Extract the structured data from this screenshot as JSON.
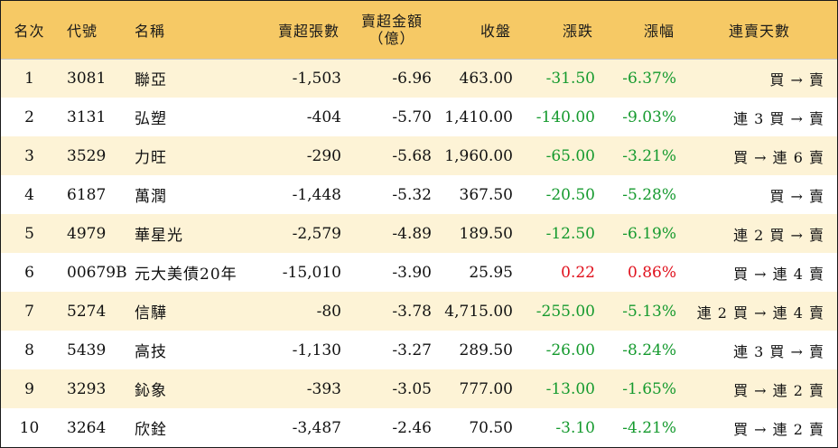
{
  "headers": {
    "rank": "名次",
    "code": "代號",
    "name": "名稱",
    "sell_lots": "賣超張數",
    "sell_amount_line1": "賣超金額",
    "sell_amount_line2": "（億）",
    "close": "收盤",
    "change": "漲跌",
    "change_pct": "漲幅",
    "streak": "連賣天數"
  },
  "colors": {
    "header_bg": "#f6c965",
    "odd_row_bg": "#fdf3d6",
    "down": "#159a2e",
    "up": "#e0101c"
  },
  "rows": [
    {
      "rank": "1",
      "code": "3081",
      "name": "聯亞",
      "sell_lots": "-1,503",
      "sell_amount": "-6.96",
      "close": "463.00",
      "change": "-31.50",
      "change_pct": "-6.37%",
      "streak": "買 → 賣",
      "dir": "down"
    },
    {
      "rank": "2",
      "code": "3131",
      "name": "弘塑",
      "sell_lots": "-404",
      "sell_amount": "-5.70",
      "close": "1,410.00",
      "change": "-140.00",
      "change_pct": "-9.03%",
      "streak": "連 3 買 → 賣",
      "dir": "down"
    },
    {
      "rank": "3",
      "code": "3529",
      "name": "力旺",
      "sell_lots": "-290",
      "sell_amount": "-5.68",
      "close": "1,960.00",
      "change": "-65.00",
      "change_pct": "-3.21%",
      "streak": "買 → 連 6 賣",
      "dir": "down"
    },
    {
      "rank": "4",
      "code": "6187",
      "name": "萬潤",
      "sell_lots": "-1,448",
      "sell_amount": "-5.32",
      "close": "367.50",
      "change": "-20.50",
      "change_pct": "-5.28%",
      "streak": "買 → 賣",
      "dir": "down"
    },
    {
      "rank": "5",
      "code": "4979",
      "name": "華星光",
      "sell_lots": "-2,579",
      "sell_amount": "-4.89",
      "close": "189.50",
      "change": "-12.50",
      "change_pct": "-6.19%",
      "streak": "連 2 買 → 賣",
      "dir": "down"
    },
    {
      "rank": "6",
      "code": "00679B",
      "name": "元大美債20年",
      "sell_lots": "-15,010",
      "sell_amount": "-3.90",
      "close": "25.95",
      "change": "0.22",
      "change_pct": "0.86%",
      "streak": "買 → 連 4 賣",
      "dir": "up"
    },
    {
      "rank": "7",
      "code": "5274",
      "name": "信驊",
      "sell_lots": "-80",
      "sell_amount": "-3.78",
      "close": "4,715.00",
      "change": "-255.00",
      "change_pct": "-5.13%",
      "streak": "連 2 買 → 連 4 賣",
      "dir": "down"
    },
    {
      "rank": "8",
      "code": "5439",
      "name": "高技",
      "sell_lots": "-1,130",
      "sell_amount": "-3.27",
      "close": "289.50",
      "change": "-26.00",
      "change_pct": "-8.24%",
      "streak": "連 3 買 → 賣",
      "dir": "down"
    },
    {
      "rank": "9",
      "code": "3293",
      "name": "鈊象",
      "sell_lots": "-393",
      "sell_amount": "-3.05",
      "close": "777.00",
      "change": "-13.00",
      "change_pct": "-1.65%",
      "streak": "買 → 連 2 賣",
      "dir": "down"
    },
    {
      "rank": "10",
      "code": "3264",
      "name": "欣銓",
      "sell_lots": "-3,487",
      "sell_amount": "-2.46",
      "close": "70.50",
      "change": "-3.10",
      "change_pct": "-4.21%",
      "streak": "買 → 連 2 賣",
      "dir": "down"
    }
  ]
}
